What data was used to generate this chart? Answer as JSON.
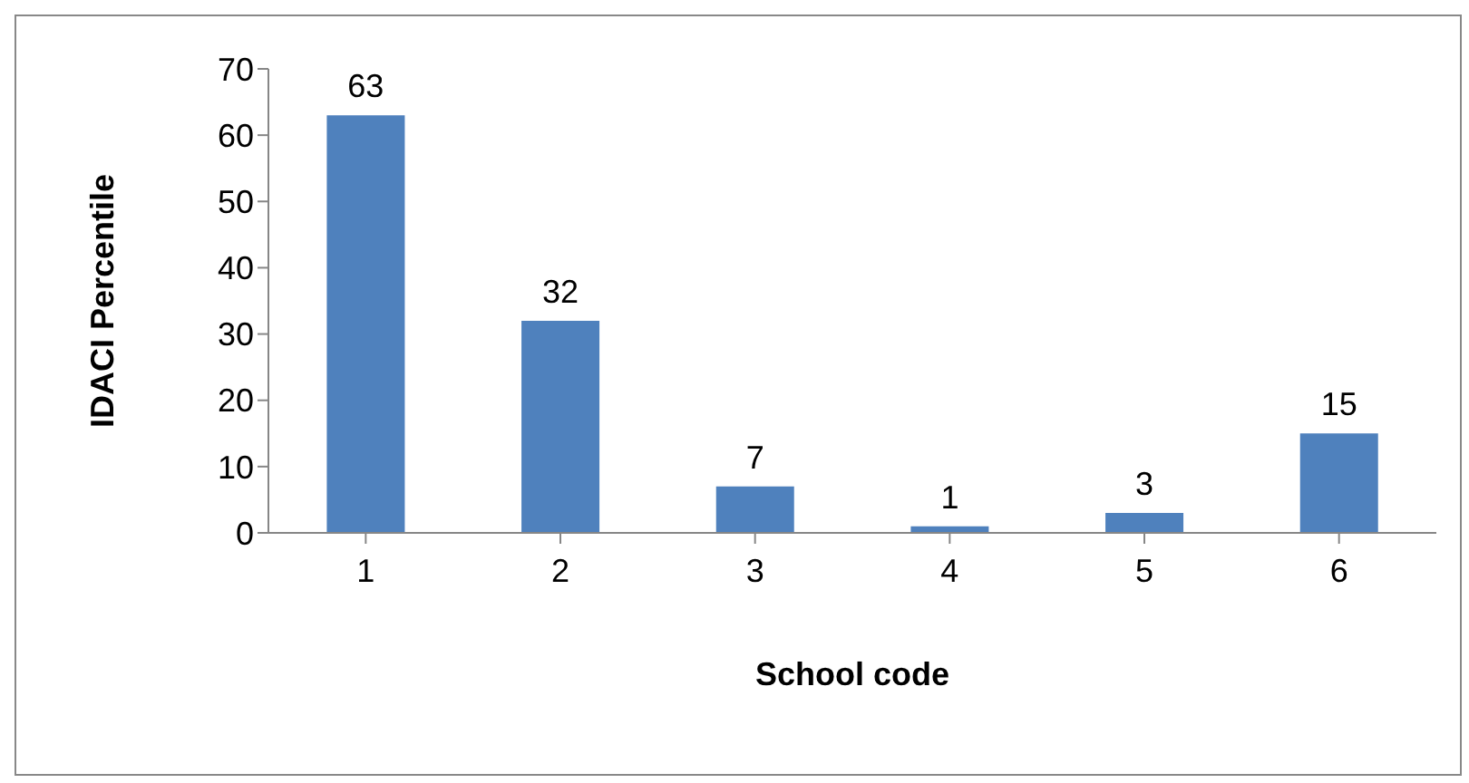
{
  "chart_data": {
    "type": "bar",
    "xlabel": "School code",
    "ylabel": "IDACI Percentile",
    "categories": [
      "1",
      "2",
      "3",
      "4",
      "5",
      "6"
    ],
    "values": [
      63,
      32,
      7,
      1,
      3,
      15
    ],
    "color": "#4f81bd",
    "ylim": [
      0,
      70
    ],
    "yticks": [
      0,
      10,
      20,
      30,
      40,
      50,
      60,
      70
    ],
    "data_labels": true
  }
}
